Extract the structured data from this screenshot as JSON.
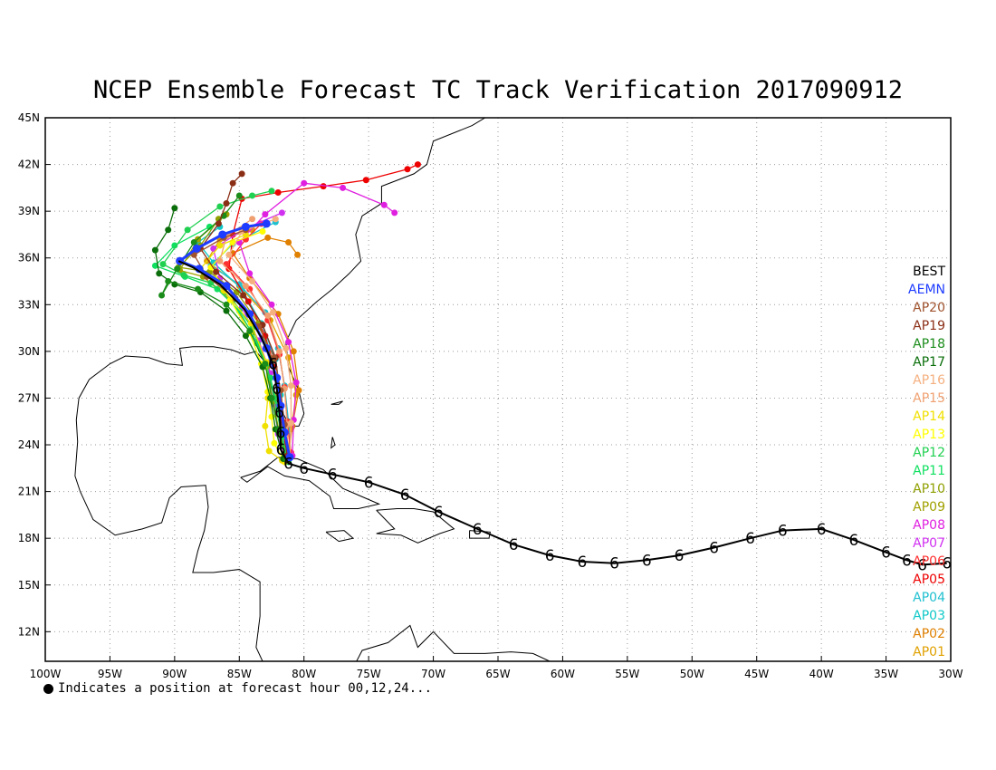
{
  "title": "NCEP Ensemble Forecast TC Track Verification 2017090912",
  "note": "Indicates a position at forecast hour 00,12,24...",
  "axes": {
    "lon_ticks": [
      "100W",
      "95W",
      "90W",
      "85W",
      "80W",
      "75W",
      "70W",
      "65W",
      "60W",
      "55W",
      "50W",
      "45W",
      "40W",
      "35W",
      "30W"
    ],
    "lat_ticks": [
      "45N",
      "42N",
      "39N",
      "36N",
      "33N",
      "30N",
      "27N",
      "24N",
      "21N",
      "18N",
      "15N",
      "12N"
    ],
    "lon_range": [
      -100,
      -30
    ],
    "lat_range": [
      10.1,
      45
    ],
    "grid": true
  },
  "legend": [
    {
      "label": "BEST",
      "color": "#000000"
    },
    {
      "label": "AEMN",
      "color": "#1e3cff"
    },
    {
      "label": "AP20",
      "color": "#a0522d"
    },
    {
      "label": "AP19",
      "color": "#8b2e16"
    },
    {
      "label": "AP18",
      "color": "#1a8c1a"
    },
    {
      "label": "AP17",
      "color": "#0a6e0a"
    },
    {
      "label": "AP16",
      "color": "#f5b080"
    },
    {
      "label": "AP15",
      "color": "#f0a070"
    },
    {
      "label": "AP14",
      "color": "#f0e000"
    },
    {
      "label": "AP13",
      "color": "#ffff00"
    },
    {
      "label": "AP12",
      "color": "#20d050"
    },
    {
      "label": "AP11",
      "color": "#10e060"
    },
    {
      "label": "AP10",
      "color": "#90a000"
    },
    {
      "label": "AP09",
      "color": "#a0a000"
    },
    {
      "label": "AP08",
      "color": "#e020e0"
    },
    {
      "label": "AP07",
      "color": "#d030f0"
    },
    {
      "label": "AP06",
      "color": "#ff3030"
    },
    {
      "label": "AP05",
      "color": "#ee0000"
    },
    {
      "label": "AP04",
      "color": "#20c0d0"
    },
    {
      "label": "AP03",
      "color": "#10c8c8"
    },
    {
      "label": "AP02",
      "color": "#e08000"
    },
    {
      "label": "AP01",
      "color": "#e0a000"
    }
  ],
  "best_track": {
    "name": "BEST",
    "points": [
      [
        -30.3,
        16.4
      ],
      [
        -32.2,
        16.3
      ],
      [
        -33.4,
        16.6
      ],
      [
        -35,
        17.1
      ],
      [
        -37.5,
        17.9
      ],
      [
        -40,
        18.6
      ],
      [
        -43,
        18.5
      ],
      [
        -45.5,
        18
      ],
      [
        -48.3,
        17.4
      ],
      [
        -51,
        16.9
      ],
      [
        -53.5,
        16.6
      ],
      [
        -56,
        16.4
      ],
      [
        -58.5,
        16.5
      ],
      [
        -61,
        16.9
      ],
      [
        -63.8,
        17.6
      ],
      [
        -66.6,
        18.6
      ],
      [
        -69.6,
        19.7
      ],
      [
        -72.2,
        20.8
      ],
      [
        -75,
        21.6
      ],
      [
        -77.8,
        22.1
      ],
      [
        -80,
        22.5
      ],
      [
        -81.2,
        22.8
      ],
      [
        -81.8,
        23.7
      ],
      [
        -81.8,
        24.8
      ],
      [
        -81.9,
        26.1
      ],
      [
        -82.1,
        27.6
      ],
      [
        -82.4,
        29.2
      ],
      [
        -83.3,
        30.9
      ],
      [
        -84.6,
        32.7
      ],
      [
        -86.5,
        34.3
      ],
      [
        -88.6,
        35.4
      ],
      [
        -89.7,
        35.8
      ]
    ]
  },
  "aemn_track": {
    "name": "AEMN",
    "points": [
      [
        -81.1,
        23.2
      ],
      [
        -81.5,
        24.8
      ],
      [
        -81.8,
        26.5
      ],
      [
        -82.1,
        28.3
      ],
      [
        -82.9,
        30.2
      ],
      [
        -84.2,
        32.4
      ],
      [
        -86,
        34.2
      ],
      [
        -88.1,
        35.3
      ],
      [
        -89.6,
        35.8
      ],
      [
        -88.3,
        36.6
      ],
      [
        -86.3,
        37.5
      ],
      [
        -84.5,
        38
      ],
      [
        -82.9,
        38.2
      ]
    ]
  },
  "ensemble_tracks": [
    {
      "name": "AP01",
      "color": "#e0a000",
      "points": [
        [
          -81.3,
          23.1
        ],
        [
          -81.0,
          25.0
        ],
        [
          -80.6,
          27.2
        ],
        [
          -81.2,
          29.6
        ],
        [
          -82.6,
          32.0
        ],
        [
          -85,
          34.2
        ],
        [
          -87.5,
          35.8
        ],
        [
          -86.5,
          37.2
        ],
        [
          -84.0,
          37.8
        ]
      ]
    },
    {
      "name": "AP02",
      "color": "#e08000",
      "points": [
        [
          -81.2,
          23.3
        ],
        [
          -80.9,
          25.2
        ],
        [
          -80.4,
          27.5
        ],
        [
          -80.8,
          30.0
        ],
        [
          -82.0,
          32.4
        ],
        [
          -84.2,
          34.7
        ],
        [
          -85.5,
          36.3
        ],
        [
          -82.8,
          37.3
        ],
        [
          -81.2,
          37.0
        ],
        [
          -80.5,
          36.2
        ]
      ]
    },
    {
      "name": "AP03",
      "color": "#10c8c8",
      "points": [
        [
          -81.4,
          23.0
        ],
        [
          -81.6,
          25.0
        ],
        [
          -81.8,
          27.2
        ],
        [
          -82.2,
          29.5
        ],
        [
          -83.3,
          31.8
        ],
        [
          -84.8,
          34.0
        ],
        [
          -87.0,
          35.7
        ],
        [
          -88.2,
          37.0
        ],
        [
          -86.5,
          38.0
        ]
      ]
    },
    {
      "name": "AP04",
      "color": "#20c0d0",
      "points": [
        [
          -81.0,
          23.3
        ],
        [
          -81.2,
          25.5
        ],
        [
          -81.5,
          27.8
        ],
        [
          -82.0,
          30.2
        ],
        [
          -83.0,
          32.5
        ],
        [
          -85.0,
          34.3
        ],
        [
          -87.2,
          35.5
        ],
        [
          -85.5,
          36.9
        ],
        [
          -82.2,
          38.3
        ]
      ]
    },
    {
      "name": "AP05",
      "color": "#ee0000",
      "points": [
        [
          -81.3,
          23.4
        ],
        [
          -81.7,
          25.2
        ],
        [
          -82.0,
          27.0
        ],
        [
          -82.3,
          29.0
        ],
        [
          -83.0,
          31.0
        ],
        [
          -84.3,
          33.2
        ],
        [
          -85.8,
          35.3
        ],
        [
          -85.5,
          37.5
        ],
        [
          -84.8,
          39.8
        ],
        [
          -82.0,
          40.2
        ],
        [
          -78.5,
          40.6
        ],
        [
          -75.2,
          41.0
        ],
        [
          -72.0,
          41.7
        ],
        [
          -71.2,
          42.0
        ]
      ]
    },
    {
      "name": "AP06",
      "color": "#ff3030",
      "points": [
        [
          -81.0,
          23.5
        ],
        [
          -81.3,
          25.5
        ],
        [
          -81.5,
          27.7
        ],
        [
          -81.9,
          29.8
        ],
        [
          -82.8,
          32.0
        ],
        [
          -84.2,
          34.0
        ],
        [
          -86.0,
          35.6
        ],
        [
          -84.5,
          37.2
        ],
        [
          -83.3,
          38.2
        ]
      ]
    },
    {
      "name": "AP07",
      "color": "#d030f0",
      "points": [
        [
          -81.5,
          22.9
        ],
        [
          -82.0,
          24.7
        ],
        [
          -82.3,
          26.6
        ],
        [
          -82.6,
          28.6
        ],
        [
          -83.5,
          30.7
        ],
        [
          -84.8,
          32.8
        ],
        [
          -86.5,
          34.7
        ],
        [
          -87.0,
          36.6
        ],
        [
          -84.5,
          37.9
        ],
        [
          -81.7,
          38.9
        ]
      ]
    },
    {
      "name": "AP08",
      "color": "#e020e0",
      "points": [
        [
          -80.9,
          23.3
        ],
        [
          -80.8,
          25.6
        ],
        [
          -80.6,
          28.0
        ],
        [
          -81.2,
          30.6
        ],
        [
          -82.5,
          33.0
        ],
        [
          -84.2,
          35.0
        ],
        [
          -85.0,
          37.0
        ],
        [
          -83.0,
          38.8
        ],
        [
          -80.0,
          40.8
        ],
        [
          -77.0,
          40.5
        ],
        [
          -73.8,
          39.4
        ],
        [
          -73.0,
          38.9
        ]
      ]
    },
    {
      "name": "AP09",
      "color": "#a0a000",
      "points": [
        [
          -81.3,
          23.0
        ],
        [
          -81.9,
          24.8
        ],
        [
          -82.4,
          26.8
        ],
        [
          -82.9,
          29.0
        ],
        [
          -84.0,
          31.2
        ],
        [
          -85.7,
          33.3
        ],
        [
          -87.8,
          34.8
        ],
        [
          -89.6,
          35.2
        ],
        [
          -88.2,
          37.2
        ],
        [
          -86.0,
          38.8
        ]
      ]
    },
    {
      "name": "AP10",
      "color": "#90a000",
      "points": [
        [
          -81.2,
          23.1
        ],
        [
          -81.6,
          25.1
        ],
        [
          -82.0,
          27.3
        ],
        [
          -82.5,
          29.5
        ],
        [
          -83.5,
          31.8
        ],
        [
          -85.2,
          33.8
        ],
        [
          -87.3,
          35.1
        ],
        [
          -89.7,
          35.4
        ],
        [
          -88.0,
          36.8
        ],
        [
          -86.6,
          38.5
        ]
      ]
    },
    {
      "name": "AP11",
      "color": "#10e060",
      "points": [
        [
          -81.2,
          22.9
        ],
        [
          -81.7,
          24.5
        ],
        [
          -82.0,
          26.3
        ],
        [
          -82.6,
          28.3
        ],
        [
          -83.6,
          30.5
        ],
        [
          -85.0,
          32.6
        ],
        [
          -86.7,
          34.0
        ],
        [
          -89.2,
          34.8
        ],
        [
          -91.5,
          35.5
        ],
        [
          -90.0,
          36.8
        ],
        [
          -87.3,
          38.0
        ]
      ]
    },
    {
      "name": "AP12",
      "color": "#20d050",
      "points": [
        [
          -81.3,
          23.0
        ],
        [
          -81.8,
          24.9
        ],
        [
          -82.3,
          27.0
        ],
        [
          -82.9,
          29.2
        ],
        [
          -84.0,
          31.5
        ],
        [
          -85.5,
          33.3
        ],
        [
          -87.2,
          34.4
        ],
        [
          -89.3,
          34.9
        ],
        [
          -90.9,
          35.6
        ],
        [
          -89.0,
          37.8
        ],
        [
          -86.5,
          39.3
        ],
        [
          -84.0,
          40.0
        ],
        [
          -82.5,
          40.3
        ]
      ]
    },
    {
      "name": "AP13",
      "color": "#ffff00",
      "points": [
        [
          -81.5,
          22.9
        ],
        [
          -82.3,
          24.1
        ],
        [
          -82.5,
          25.8
        ],
        [
          -82.8,
          27.4
        ],
        [
          -83.3,
          29.2
        ],
        [
          -84.2,
          31.2
        ],
        [
          -85.7,
          33.3
        ],
        [
          -87.2,
          35.4
        ],
        [
          -85.5,
          37.0
        ],
        [
          -83.2,
          37.7
        ]
      ]
    },
    {
      "name": "AP14",
      "color": "#f0e000",
      "points": [
        [
          -81.7,
          23.0
        ],
        [
          -82.7,
          23.6
        ],
        [
          -83.0,
          25.2
        ],
        [
          -82.8,
          27.0
        ],
        [
          -82.9,
          29.3
        ],
        [
          -84.1,
          31.8
        ],
        [
          -86.2,
          33.9
        ],
        [
          -88.0,
          35.3
        ],
        [
          -86.5,
          36.8
        ],
        [
          -84.5,
          37.5
        ]
      ]
    },
    {
      "name": "AP15",
      "color": "#f0a070",
      "points": [
        [
          -81.2,
          23.2
        ],
        [
          -81.3,
          25.3
        ],
        [
          -81.5,
          27.6
        ],
        [
          -81.9,
          30.0
        ],
        [
          -82.8,
          32.3
        ],
        [
          -84.5,
          34.2
        ],
        [
          -86.5,
          35.8
        ],
        [
          -86.0,
          37.4
        ],
        [
          -84.0,
          38.5
        ]
      ]
    },
    {
      "name": "AP16",
      "color": "#f5b080",
      "points": [
        [
          -81.1,
          23.2
        ],
        [
          -81.0,
          25.4
        ],
        [
          -81.0,
          27.8
        ],
        [
          -81.4,
          30.2
        ],
        [
          -82.4,
          32.5
        ],
        [
          -84.0,
          34.5
        ],
        [
          -85.8,
          36.2
        ],
        [
          -84.8,
          37.7
        ],
        [
          -82.2,
          38.5
        ]
      ]
    },
    {
      "name": "AP17",
      "color": "#0a6e0a",
      "points": [
        [
          -81.6,
          23.1
        ],
        [
          -82.2,
          25.0
        ],
        [
          -82.6,
          27.0
        ],
        [
          -83.2,
          29.0
        ],
        [
          -84.5,
          31.0
        ],
        [
          -86.0,
          32.6
        ],
        [
          -88.0,
          33.8
        ],
        [
          -90.0,
          34.3
        ],
        [
          -91.2,
          35.0
        ],
        [
          -91.5,
          36.5
        ],
        [
          -90.5,
          37.8
        ],
        [
          -90.0,
          39.2
        ]
      ]
    },
    {
      "name": "AP18",
      "color": "#1a8c1a",
      "points": [
        [
          -81.4,
          23.1
        ],
        [
          -82.0,
          25.0
        ],
        [
          -82.5,
          27.0
        ],
        [
          -83.0,
          29.2
        ],
        [
          -84.2,
          31.3
        ],
        [
          -86.0,
          33.0
        ],
        [
          -88.2,
          34.0
        ],
        [
          -90.5,
          34.5
        ],
        [
          -91.0,
          33.6
        ],
        [
          -89.8,
          35.3
        ],
        [
          -88.5,
          37.0
        ],
        [
          -86.2,
          38.7
        ],
        [
          -85.0,
          40.0
        ]
      ]
    },
    {
      "name": "AP19",
      "color": "#8b2e16",
      "points": [
        [
          -81.3,
          23.3
        ],
        [
          -81.6,
          25.4
        ],
        [
          -81.9,
          27.5
        ],
        [
          -82.2,
          29.6
        ],
        [
          -83.2,
          31.7
        ],
        [
          -84.7,
          33.6
        ],
        [
          -86.8,
          35.1
        ],
        [
          -88.0,
          36.6
        ],
        [
          -86.6,
          38.2
        ],
        [
          -86.0,
          39.5
        ],
        [
          -85.5,
          40.8
        ],
        [
          -84.8,
          41.4
        ]
      ]
    },
    {
      "name": "AP20",
      "color": "#a0522d",
      "points": [
        [
          -81.2,
          23.2
        ],
        [
          -81.5,
          25.3
        ],
        [
          -81.8,
          27.5
        ],
        [
          -82.3,
          29.6
        ],
        [
          -83.5,
          31.6
        ],
        [
          -85.3,
          33.4
        ],
        [
          -87.5,
          34.8
        ],
        [
          -88.5,
          36.2
        ],
        [
          -86.2,
          37.3
        ],
        [
          -84.5,
          37.8
        ]
      ]
    }
  ]
}
